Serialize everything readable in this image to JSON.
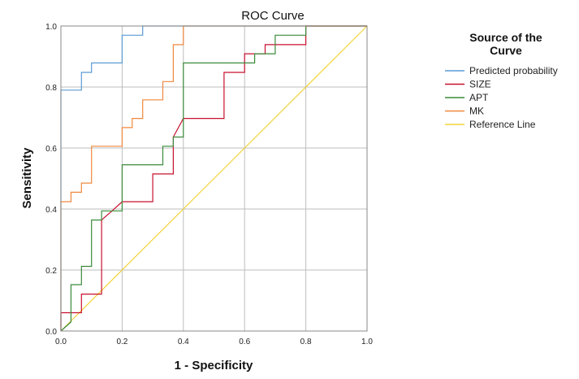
{
  "chart_data": {
    "type": "line",
    "title": "ROC Curve",
    "xlabel": "1 - Specificity",
    "ylabel": "Sensitivity",
    "xlim": [
      0,
      1
    ],
    "ylim": [
      0,
      1
    ],
    "grid": true,
    "x_ticks": [
      "0.0",
      "0.2",
      "0.4",
      "0.6",
      "0.8",
      "1.0"
    ],
    "y_ticks": [
      "0.0",
      "0.2",
      "0.4",
      "0.6",
      "0.8",
      "1.0"
    ],
    "legend": {
      "title_line1": "Source of the",
      "title_line2": "Curve",
      "placement": "right"
    },
    "series": [
      {
        "name": "Predicted probability",
        "color": "#5b9bd5",
        "points": [
          [
            0,
            0
          ],
          [
            0,
            0.79
          ],
          [
            0.067,
            0.79
          ],
          [
            0.067,
            0.848
          ],
          [
            0.1,
            0.848
          ],
          [
            0.1,
            0.879
          ],
          [
            0.2,
            0.879
          ],
          [
            0.2,
            0.97
          ],
          [
            0.267,
            0.97
          ],
          [
            0.267,
            1
          ],
          [
            1,
            1
          ]
        ]
      },
      {
        "name": "SIZE",
        "color": "#c8102e",
        "points": [
          [
            0,
            0
          ],
          [
            0,
            0.06
          ],
          [
            0.067,
            0.06
          ],
          [
            0.067,
            0.121
          ],
          [
            0.133,
            0.121
          ],
          [
            0.133,
            0.364
          ],
          [
            0.167,
            0.394
          ],
          [
            0.2,
            0.424
          ],
          [
            0.3,
            0.424
          ],
          [
            0.3,
            0.515
          ],
          [
            0.367,
            0.515
          ],
          [
            0.367,
            0.636
          ],
          [
            0.4,
            0.697
          ],
          [
            0.533,
            0.697
          ],
          [
            0.533,
            0.848
          ],
          [
            0.6,
            0.848
          ],
          [
            0.6,
            0.909
          ],
          [
            0.667,
            0.909
          ],
          [
            0.667,
            0.939
          ],
          [
            0.8,
            0.939
          ],
          [
            0.8,
            1
          ],
          [
            1,
            1
          ]
        ]
      },
      {
        "name": "APT",
        "color": "#3a8a3a",
        "points": [
          [
            0,
            0
          ],
          [
            0.033,
            0.03
          ],
          [
            0.033,
            0.152
          ],
          [
            0.067,
            0.152
          ],
          [
            0.067,
            0.212
          ],
          [
            0.1,
            0.212
          ],
          [
            0.1,
            0.364
          ],
          [
            0.133,
            0.364
          ],
          [
            0.133,
            0.394
          ],
          [
            0.2,
            0.394
          ],
          [
            0.2,
            0.545
          ],
          [
            0.333,
            0.545
          ],
          [
            0.333,
            0.606
          ],
          [
            0.367,
            0.606
          ],
          [
            0.367,
            0.636
          ],
          [
            0.4,
            0.636
          ],
          [
            0.4,
            0.879
          ],
          [
            0.633,
            0.879
          ],
          [
            0.633,
            0.909
          ],
          [
            0.7,
            0.909
          ],
          [
            0.7,
            0.97
          ],
          [
            0.8,
            0.97
          ],
          [
            0.8,
            1
          ],
          [
            1,
            1
          ]
        ]
      },
      {
        "name": "MK",
        "color": "#f0883e",
        "points": [
          [
            0,
            0
          ],
          [
            0,
            0.424
          ],
          [
            0.033,
            0.424
          ],
          [
            0.033,
            0.455
          ],
          [
            0.067,
            0.455
          ],
          [
            0.067,
            0.485
          ],
          [
            0.1,
            0.485
          ],
          [
            0.1,
            0.606
          ],
          [
            0.2,
            0.606
          ],
          [
            0.2,
            0.667
          ],
          [
            0.233,
            0.667
          ],
          [
            0.233,
            0.697
          ],
          [
            0.267,
            0.697
          ],
          [
            0.267,
            0.758
          ],
          [
            0.333,
            0.758
          ],
          [
            0.333,
            0.818
          ],
          [
            0.367,
            0.818
          ],
          [
            0.367,
            0.939
          ],
          [
            0.4,
            0.939
          ],
          [
            0.4,
            1
          ],
          [
            1,
            1
          ]
        ]
      },
      {
        "name": "Reference Line",
        "color": "#f2d43a",
        "points": [
          [
            0,
            0
          ],
          [
            1,
            1
          ]
        ]
      }
    ]
  }
}
